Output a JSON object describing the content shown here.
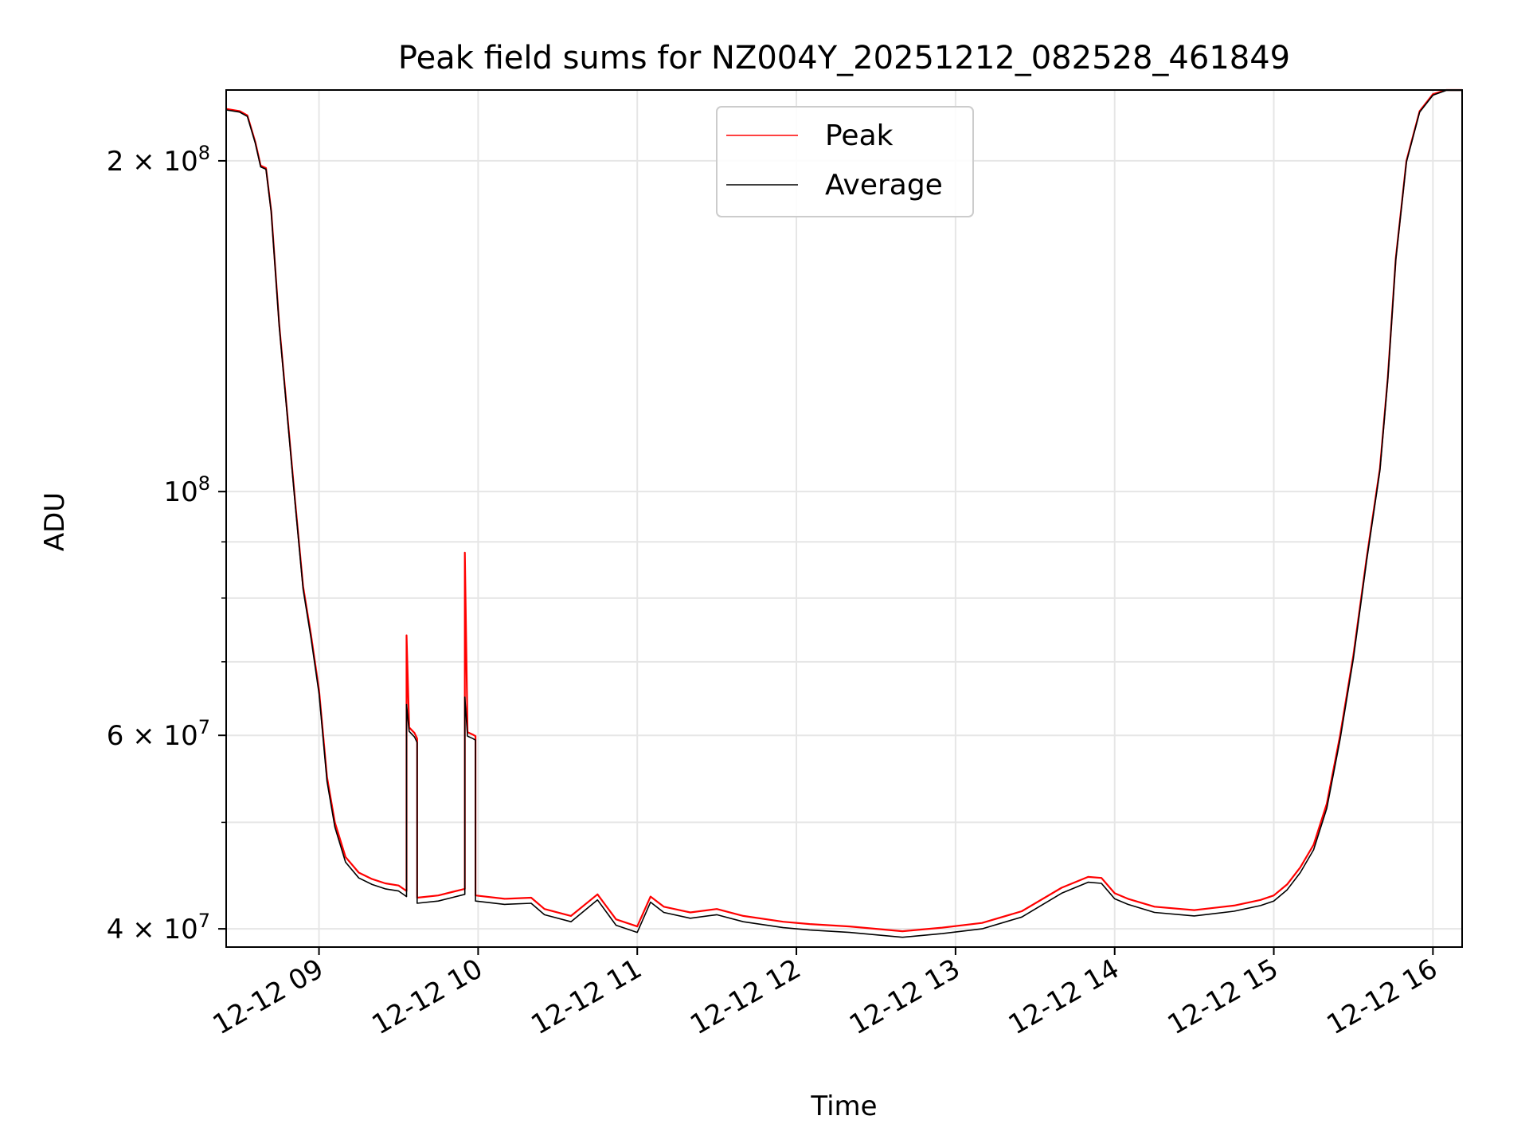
{
  "chart_data": {
    "type": "line",
    "title": "Peak field sums for NZ004Y_20251212_082528_461849",
    "xlabel": "Time",
    "ylabel": "ADU",
    "yscale": "log",
    "xlim": [
      "2025-12-12 08:25",
      "2025-12-12 16:11"
    ],
    "ylim": [
      38500000,
      232000000
    ],
    "x_ticks": [
      "12-12 09",
      "12-12 10",
      "12-12 11",
      "12-12 12",
      "12-12 13",
      "12-12 14",
      "12-12 15",
      "12-12 16"
    ],
    "y_ticks": [
      {
        "value": 40000000,
        "label": "4 × 10",
        "exp": "7"
      },
      {
        "value": 60000000,
        "label": "6 × 10",
        "exp": "7"
      },
      {
        "value": 100000000,
        "label": "10",
        "exp": "8"
      },
      {
        "value": 200000000,
        "label": "2 × 10",
        "exp": "8"
      }
    ],
    "y_minor_ticks": [
      50000000,
      70000000,
      80000000,
      90000000
    ],
    "grid": true,
    "legend_position": "top-center",
    "series": [
      {
        "name": "Peak",
        "color": "#ff0000",
        "x": [
          "2025-12-12 08:25",
          "2025-12-12 08:30",
          "2025-12-12 08:33",
          "2025-12-12 08:36",
          "2025-12-12 08:38",
          "2025-12-12 08:40",
          "2025-12-12 08:42",
          "2025-12-12 08:45",
          "2025-12-12 08:48",
          "2025-12-12 08:51",
          "2025-12-12 08:54",
          "2025-12-12 08:57",
          "2025-12-12 09:00",
          "2025-12-12 09:03",
          "2025-12-12 09:06",
          "2025-12-12 09:10",
          "2025-12-12 09:15",
          "2025-12-12 09:20",
          "2025-12-12 09:25",
          "2025-12-12 09:30",
          "2025-12-12 09:33",
          "2025-12-12 09:33",
          "2025-12-12 09:34",
          "2025-12-12 09:36",
          "2025-12-12 09:37",
          "2025-12-12 09:37",
          "2025-12-12 09:45",
          "2025-12-12 09:50",
          "2025-12-12 09:55",
          "2025-12-12 09:55",
          "2025-12-12 09:56",
          "2025-12-12 09:58",
          "2025-12-12 09:59",
          "2025-12-12 09:59",
          "2025-12-12 10:10",
          "2025-12-12 10:20",
          "2025-12-12 10:25",
          "2025-12-12 10:35",
          "2025-12-12 10:45",
          "2025-12-12 10:52",
          "2025-12-12 11:00",
          "2025-12-12 11:05",
          "2025-12-12 11:10",
          "2025-12-12 11:20",
          "2025-12-12 11:30",
          "2025-12-12 11:40",
          "2025-12-12 11:55",
          "2025-12-12 12:05",
          "2025-12-12 12:20",
          "2025-12-12 12:40",
          "2025-12-12 12:55",
          "2025-12-12 13:10",
          "2025-12-12 13:25",
          "2025-12-12 13:40",
          "2025-12-12 13:50",
          "2025-12-12 13:55",
          "2025-12-12 14:00",
          "2025-12-12 14:05",
          "2025-12-12 14:15",
          "2025-12-12 14:30",
          "2025-12-12 14:45",
          "2025-12-12 14:55",
          "2025-12-12 15:00",
          "2025-12-12 15:05",
          "2025-12-12 15:10",
          "2025-12-12 15:15",
          "2025-12-12 15:20",
          "2025-12-12 15:25",
          "2025-12-12 15:30",
          "2025-12-12 15:35",
          "2025-12-12 15:40",
          "2025-12-12 15:43",
          "2025-12-12 15:46",
          "2025-12-12 15:50",
          "2025-12-12 15:55",
          "2025-12-12 16:00",
          "2025-12-12 16:05",
          "2025-12-12 16:11"
        ],
        "y": [
          223000000,
          222000000,
          220000000,
          208000000,
          198000000,
          197000000,
          180000000,
          142000000,
          118000000,
          98000000,
          82000000,
          74000000,
          66000000,
          55000000,
          50000000,
          46500000,
          45000000,
          44400000,
          44000000,
          43800000,
          43300000,
          74000000,
          61000000,
          60300000,
          59600000,
          42700000,
          42900000,
          43200000,
          43500000,
          88000000,
          60400000,
          60100000,
          59900000,
          42900000,
          42600000,
          42700000,
          41700000,
          41100000,
          43000000,
          40800000,
          40200000,
          42800000,
          41900000,
          41400000,
          41700000,
          41100000,
          40600000,
          40400000,
          40200000,
          39800000,
          40100000,
          40500000,
          41500000,
          43600000,
          44600000,
          44500000,
          43100000,
          42600000,
          41900000,
          41600000,
          42000000,
          42500000,
          42900000,
          43900000,
          45500000,
          47700000,
          52000000,
          60000000,
          71000000,
          87000000,
          105000000,
          127000000,
          163000000,
          200000000,
          222000000,
          230000000,
          232000000,
          232000000
        ]
      },
      {
        "name": "Average",
        "color": "#000000",
        "x": [
          "2025-12-12 08:25",
          "2025-12-12 08:30",
          "2025-12-12 08:33",
          "2025-12-12 08:36",
          "2025-12-12 08:38",
          "2025-12-12 08:40",
          "2025-12-12 08:42",
          "2025-12-12 08:45",
          "2025-12-12 08:48",
          "2025-12-12 08:51",
          "2025-12-12 08:54",
          "2025-12-12 08:57",
          "2025-12-12 09:00",
          "2025-12-12 09:03",
          "2025-12-12 09:06",
          "2025-12-12 09:10",
          "2025-12-12 09:15",
          "2025-12-12 09:20",
          "2025-12-12 09:25",
          "2025-12-12 09:30",
          "2025-12-12 09:33",
          "2025-12-12 09:33",
          "2025-12-12 09:34",
          "2025-12-12 09:36",
          "2025-12-12 09:37",
          "2025-12-12 09:37",
          "2025-12-12 09:45",
          "2025-12-12 09:50",
          "2025-12-12 09:55",
          "2025-12-12 09:55",
          "2025-12-12 09:56",
          "2025-12-12 09:58",
          "2025-12-12 09:59",
          "2025-12-12 09:59",
          "2025-12-12 10:10",
          "2025-12-12 10:20",
          "2025-12-12 10:25",
          "2025-12-12 10:35",
          "2025-12-12 10:45",
          "2025-12-12 10:52",
          "2025-12-12 11:00",
          "2025-12-12 11:05",
          "2025-12-12 11:10",
          "2025-12-12 11:20",
          "2025-12-12 11:30",
          "2025-12-12 11:40",
          "2025-12-12 11:55",
          "2025-12-12 12:05",
          "2025-12-12 12:20",
          "2025-12-12 12:40",
          "2025-12-12 12:55",
          "2025-12-12 13:10",
          "2025-12-12 13:25",
          "2025-12-12 13:40",
          "2025-12-12 13:50",
          "2025-12-12 13:55",
          "2025-12-12 14:00",
          "2025-12-12 14:05",
          "2025-12-12 14:15",
          "2025-12-12 14:30",
          "2025-12-12 14:45",
          "2025-12-12 14:55",
          "2025-12-12 15:00",
          "2025-12-12 15:05",
          "2025-12-12 15:10",
          "2025-12-12 15:15",
          "2025-12-12 15:20",
          "2025-12-12 15:25",
          "2025-12-12 15:30",
          "2025-12-12 15:35",
          "2025-12-12 15:40",
          "2025-12-12 15:43",
          "2025-12-12 15:46",
          "2025-12-12 15:50",
          "2025-12-12 15:55",
          "2025-12-12 16:00",
          "2025-12-12 16:05",
          "2025-12-12 16:11"
        ],
        "y": [
          222500000,
          221500000,
          219500000,
          207500000,
          197500000,
          196500000,
          179500000,
          141500000,
          117500000,
          97500000,
          81500000,
          73500000,
          65500000,
          54500000,
          49500000,
          46000000,
          44500000,
          43900000,
          43500000,
          43300000,
          42800000,
          64000000,
          60500000,
          59800000,
          59100000,
          42200000,
          42400000,
          42700000,
          43000000,
          65000000,
          59900000,
          59600000,
          59400000,
          42400000,
          42100000,
          42200000,
          41200000,
          40600000,
          42500000,
          40300000,
          39700000,
          42300000,
          41400000,
          40900000,
          41200000,
          40600000,
          40100000,
          39900000,
          39700000,
          39300000,
          39600000,
          40000000,
          41000000,
          43100000,
          44100000,
          44000000,
          42600000,
          42100000,
          41400000,
          41100000,
          41500000,
          42000000,
          42400000,
          43400000,
          45000000,
          47200000,
          51500000,
          59500000,
          70500000,
          86500000,
          104500000,
          126500000,
          162500000,
          199500000,
          221500000,
          229500000,
          231800000,
          231800000
        ]
      }
    ]
  }
}
